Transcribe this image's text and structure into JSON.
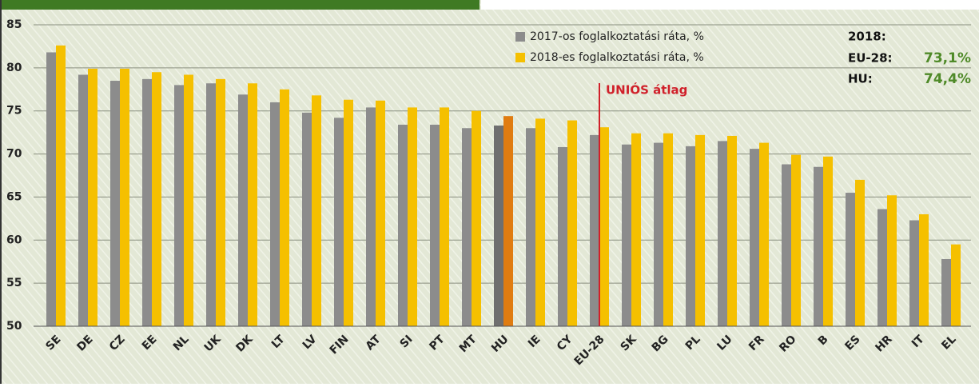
{
  "chart_data": {
    "type": "bar",
    "categories": [
      "SE",
      "DE",
      "CZ",
      "EE",
      "NL",
      "UK",
      "DK",
      "LT",
      "LV",
      "FIN",
      "AT",
      "SI",
      "PT",
      "MT",
      "HU",
      "IE",
      "CY",
      "EU-28",
      "SK",
      "BG",
      "PL",
      "LU",
      "FR",
      "RO",
      "B",
      "ES",
      "HR",
      "IT",
      "EL"
    ],
    "series": [
      {
        "name": "2017-os foglalkoztatási ráta, %",
        "color": "#8c8c8c",
        "highlight_color": "#6f6f6f",
        "values": [
          81.8,
          79.2,
          78.5,
          78.7,
          78.0,
          78.2,
          76.9,
          76.0,
          74.8,
          74.2,
          75.4,
          73.4,
          73.4,
          73.0,
          73.3,
          73.0,
          70.8,
          72.2,
          71.1,
          71.3,
          70.9,
          71.5,
          70.6,
          68.8,
          68.5,
          65.5,
          63.6,
          62.3,
          57.8
        ]
      },
      {
        "name": "2018-es foglalkoztatási ráta, %",
        "color": "#f5c000",
        "highlight_color": "#e07c10",
        "values": [
          82.6,
          79.9,
          79.9,
          79.5,
          79.2,
          78.7,
          78.2,
          77.5,
          76.8,
          76.3,
          76.2,
          75.4,
          75.4,
          75.0,
          74.4,
          74.1,
          73.9,
          73.1,
          72.4,
          72.4,
          72.2,
          72.1,
          71.3,
          69.9,
          69.7,
          67.0,
          65.2,
          63.0,
          59.5
        ]
      }
    ],
    "highlight": "HU",
    "ylim": [
      50,
      85
    ],
    "yticks": [
      50,
      55,
      60,
      65,
      70,
      75,
      80,
      85
    ],
    "grid": true,
    "reference": {
      "category": "EU-28",
      "label": "UNIÓS átlag",
      "color": "#d0202a"
    },
    "summary": {
      "title": "2018:",
      "rows": [
        {
          "label": "EU-28:",
          "value": "73,1%"
        },
        {
          "label": "HU:",
          "value": "74,4%"
        }
      ]
    }
  }
}
